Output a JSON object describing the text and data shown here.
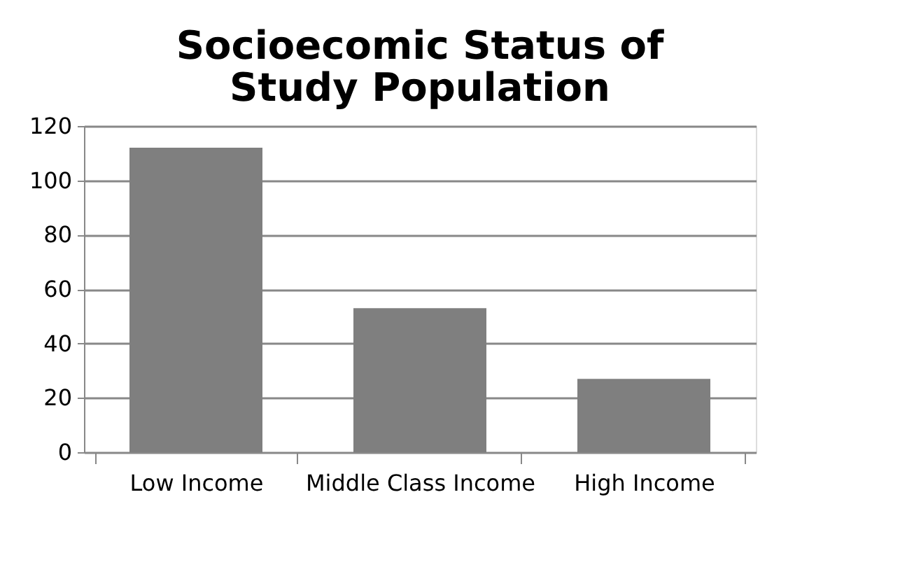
{
  "chart_data": {
    "type": "bar",
    "title": "Socioecomic Status of Study Population",
    "categories": [
      "Low Income",
      "Middle Class Income",
      "High Income"
    ],
    "values": [
      112,
      53,
      27
    ],
    "color": "#7f7f7f",
    "ylim": [
      0,
      120
    ],
    "yticks": [
      0,
      20,
      40,
      60,
      80,
      100,
      120
    ],
    "grid": "y"
  }
}
